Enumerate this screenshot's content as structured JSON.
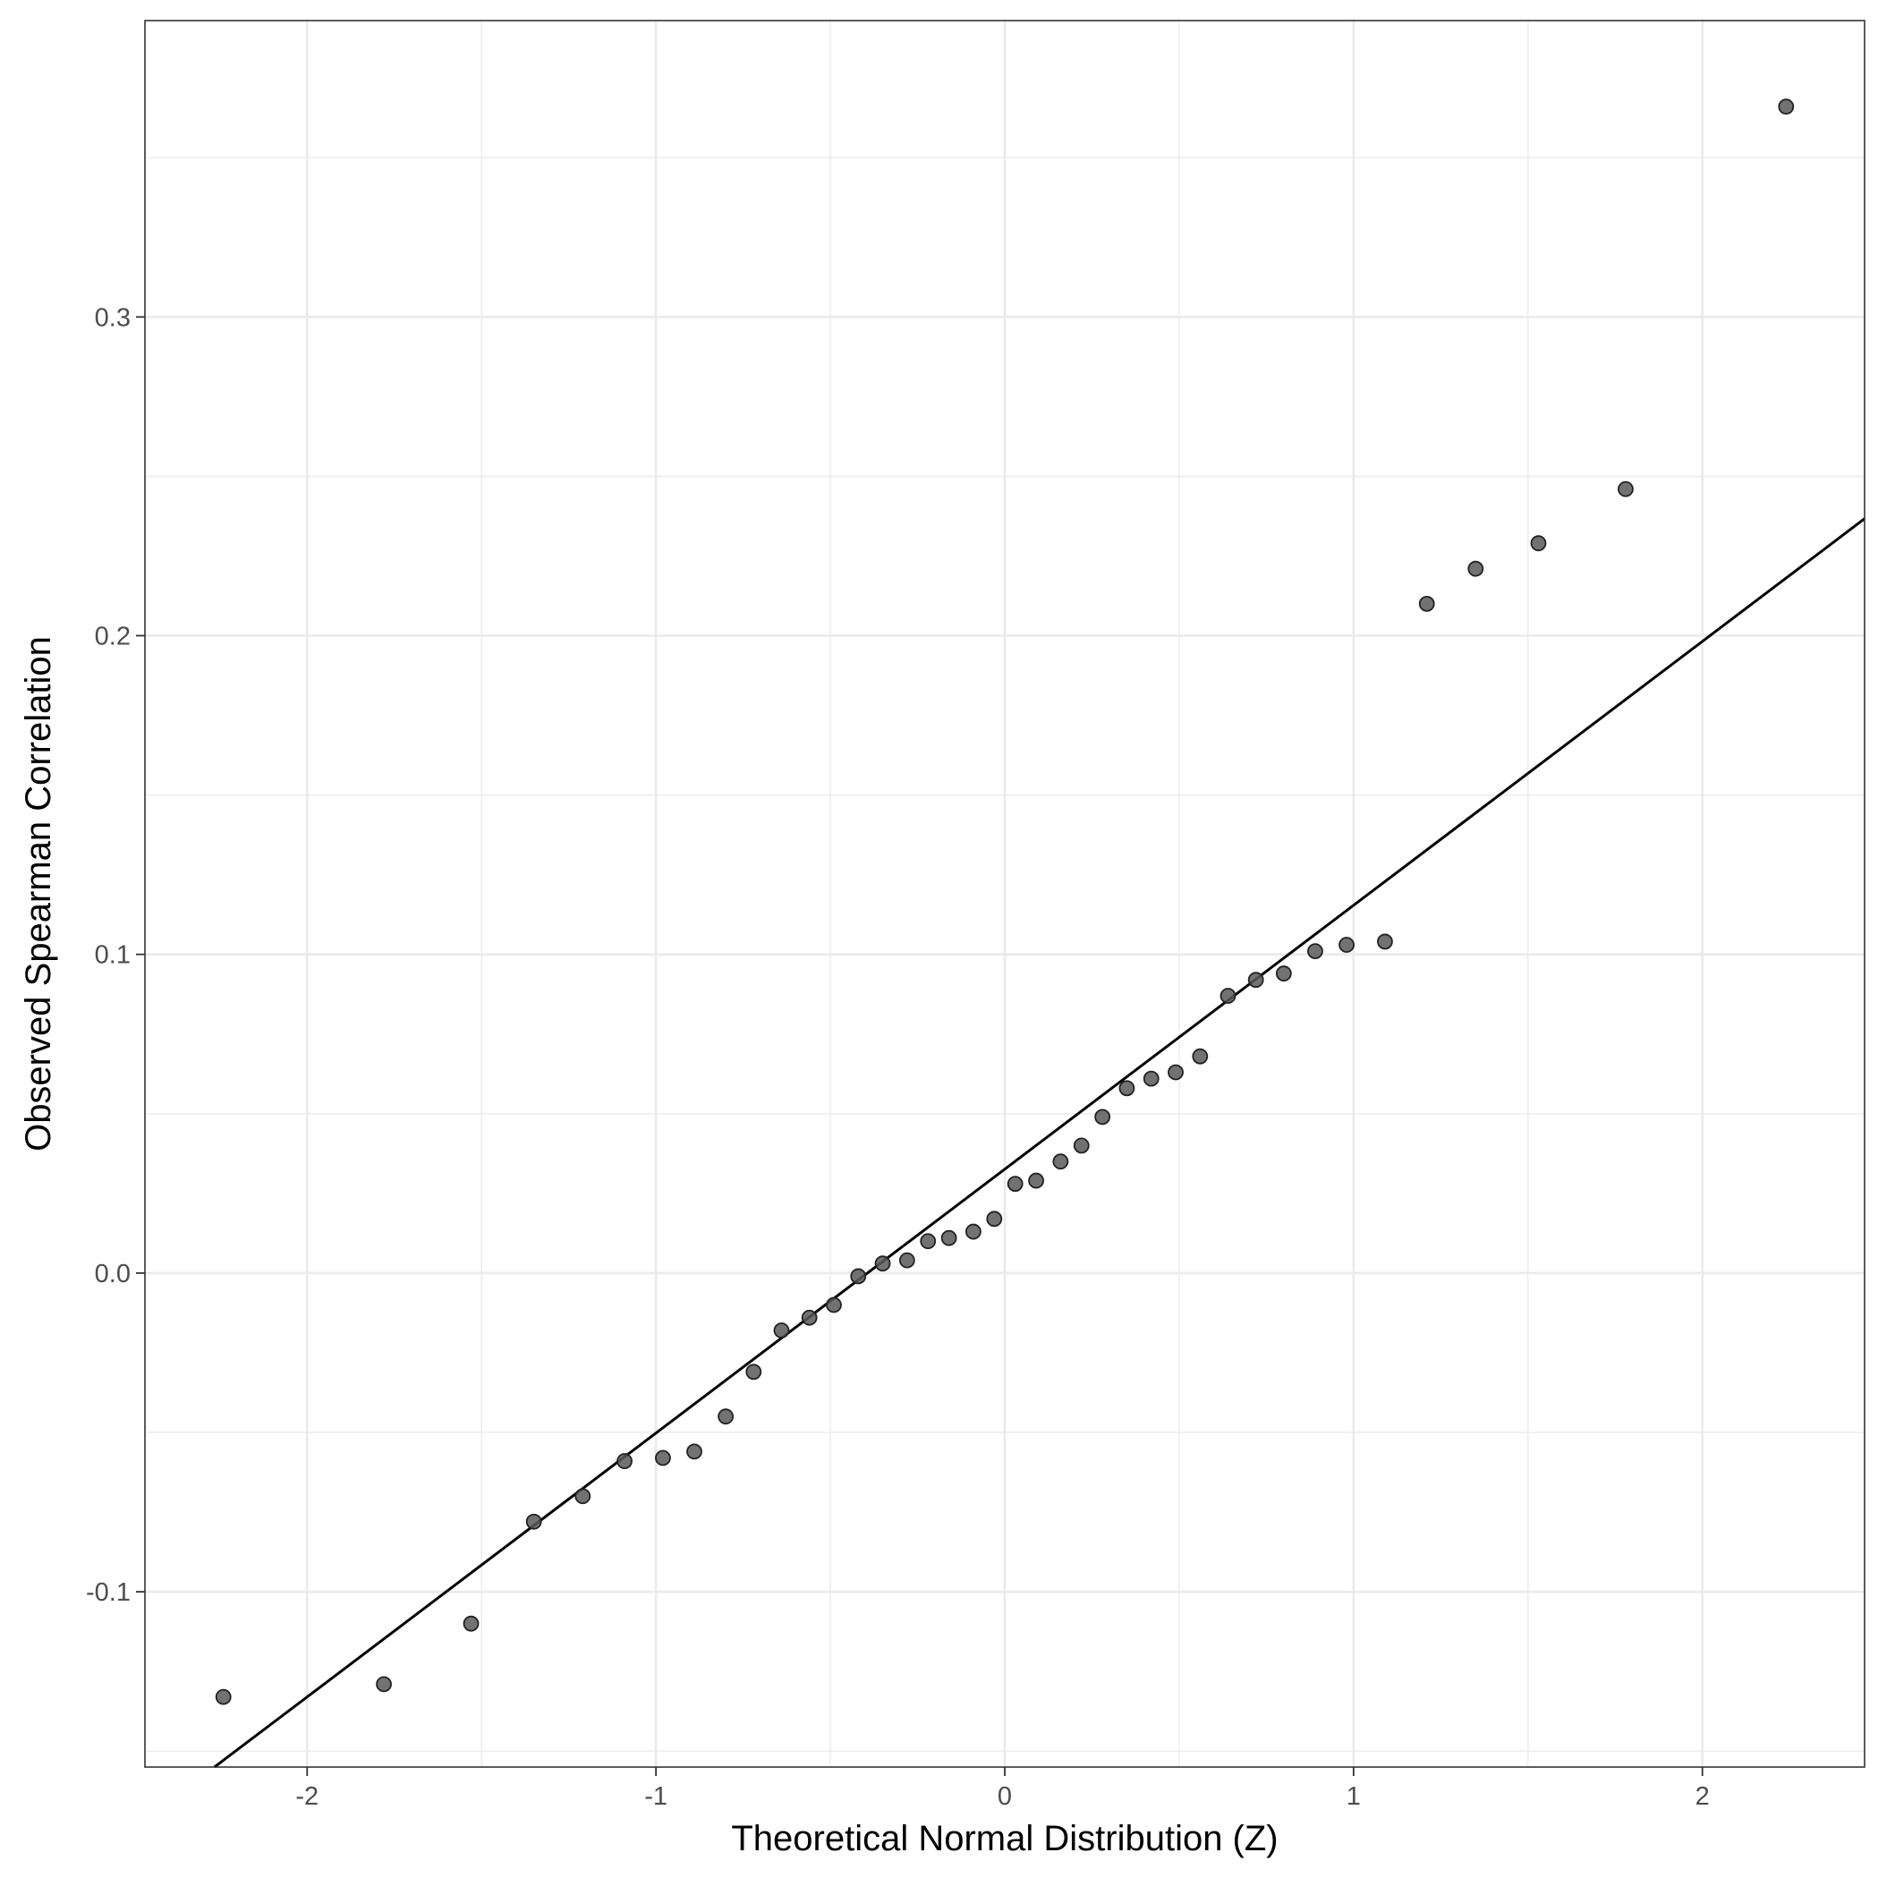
{
  "chart_data": {
    "type": "scatter",
    "title": "",
    "xlabel": "Theoretical Normal Distribution (Z)",
    "ylabel": "Observed Spearman Correlation",
    "xlim": [
      -2.465,
      2.465
    ],
    "ylim": [
      -0.155,
      0.393
    ],
    "x_ticks": [
      -2,
      -1,
      0,
      1,
      2
    ],
    "x_tick_labels": [
      "-2",
      "-1",
      "0",
      "1",
      "2"
    ],
    "y_ticks": [
      -0.1,
      0.0,
      0.1,
      0.2,
      0.3
    ],
    "y_tick_labels": [
      "-0.1",
      "0.0",
      "0.1",
      "0.2",
      "0.3"
    ],
    "grid": true,
    "point_color": "#595959",
    "line_color": "#000000",
    "reference_line": {
      "slope": 0.0828,
      "intercept": 0.0326
    },
    "points": [
      {
        "x": -2.24,
        "y": -0.133
      },
      {
        "x": -1.78,
        "y": -0.129
      },
      {
        "x": -1.53,
        "y": -0.11
      },
      {
        "x": -1.35,
        "y": -0.078
      },
      {
        "x": -1.21,
        "y": -0.07
      },
      {
        "x": -1.09,
        "y": -0.059
      },
      {
        "x": -0.98,
        "y": -0.058
      },
      {
        "x": -0.89,
        "y": -0.056
      },
      {
        "x": -0.8,
        "y": -0.045
      },
      {
        "x": -0.72,
        "y": -0.031
      },
      {
        "x": -0.64,
        "y": -0.018
      },
      {
        "x": -0.56,
        "y": -0.014
      },
      {
        "x": -0.49,
        "y": -0.01
      },
      {
        "x": -0.42,
        "y": -0.001
      },
      {
        "x": -0.35,
        "y": 0.003
      },
      {
        "x": -0.28,
        "y": 0.004
      },
      {
        "x": -0.22,
        "y": 0.01
      },
      {
        "x": -0.16,
        "y": 0.011
      },
      {
        "x": -0.09,
        "y": 0.013
      },
      {
        "x": -0.03,
        "y": 0.017
      },
      {
        "x": 0.03,
        "y": 0.028
      },
      {
        "x": 0.09,
        "y": 0.029
      },
      {
        "x": 0.16,
        "y": 0.035
      },
      {
        "x": 0.22,
        "y": 0.04
      },
      {
        "x": 0.28,
        "y": 0.049
      },
      {
        "x": 0.35,
        "y": 0.058
      },
      {
        "x": 0.42,
        "y": 0.061
      },
      {
        "x": 0.49,
        "y": 0.063
      },
      {
        "x": 0.56,
        "y": 0.068
      },
      {
        "x": 0.64,
        "y": 0.087
      },
      {
        "x": 0.72,
        "y": 0.092
      },
      {
        "x": 0.8,
        "y": 0.094
      },
      {
        "x": 0.89,
        "y": 0.101
      },
      {
        "x": 0.98,
        "y": 0.103
      },
      {
        "x": 1.09,
        "y": 0.104
      },
      {
        "x": 1.21,
        "y": 0.21
      },
      {
        "x": 1.35,
        "y": 0.221
      },
      {
        "x": 1.53,
        "y": 0.229
      },
      {
        "x": 1.78,
        "y": 0.246
      },
      {
        "x": 2.24,
        "y": 0.366
      }
    ]
  }
}
